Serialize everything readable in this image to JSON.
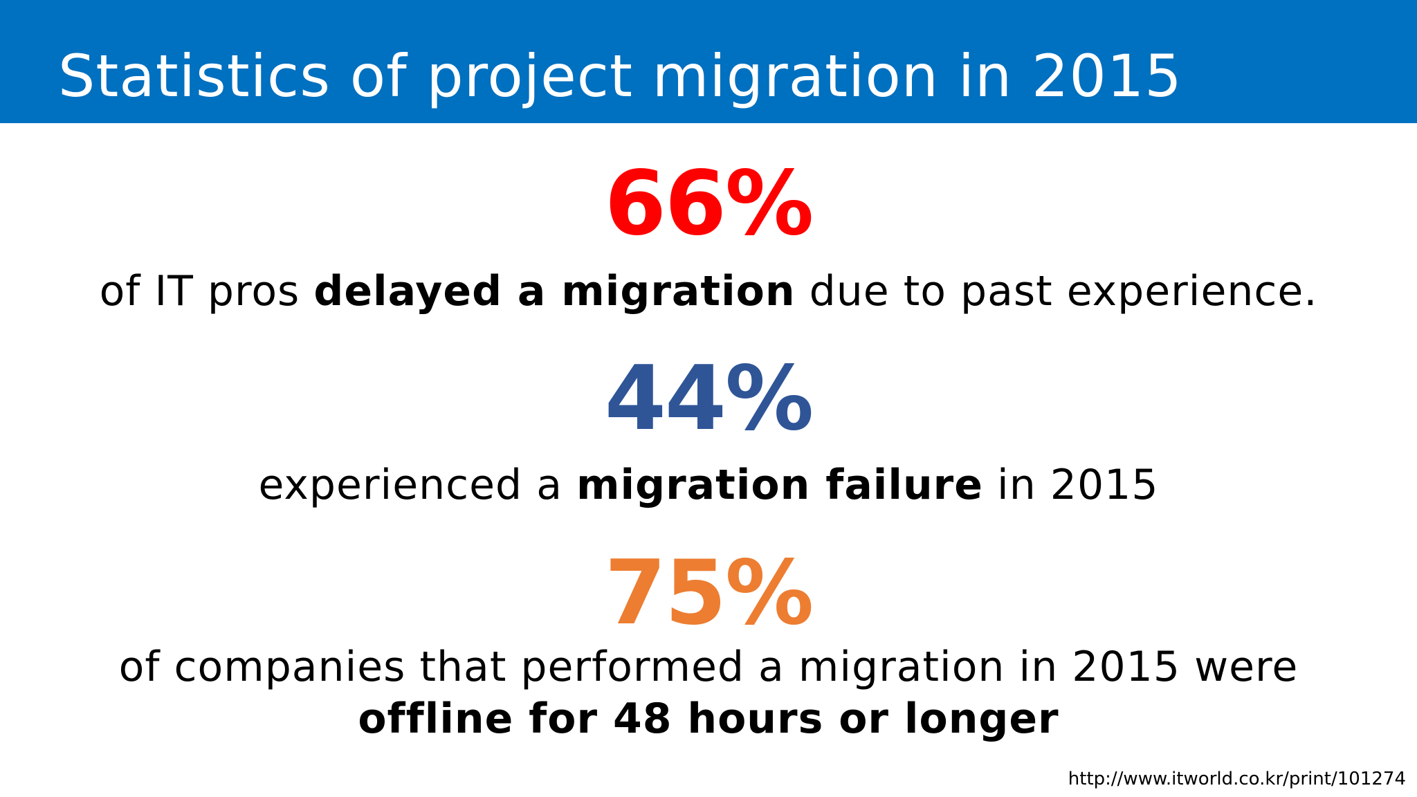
{
  "header": {
    "title": "Statistics of project migration in 2015",
    "background": "#0070c0"
  },
  "stats": [
    {
      "value": "66%",
      "color": "#ff0000",
      "text_pre": "of IT pros ",
      "text_bold": "delayed a migration",
      "text_post": " due to past experience."
    },
    {
      "value": "44%",
      "color": "#2f5597",
      "text_pre": "experienced a ",
      "text_bold": "migration failure",
      "text_post": " in 2015"
    },
    {
      "value": "75%",
      "color": "#ed7d31",
      "text_line1": "of companies that performed a migration in 2015 were",
      "text_line2_bold": "offline for 48 hours or longer"
    }
  ],
  "source": "http://www.itworld.co.kr/print/101274"
}
